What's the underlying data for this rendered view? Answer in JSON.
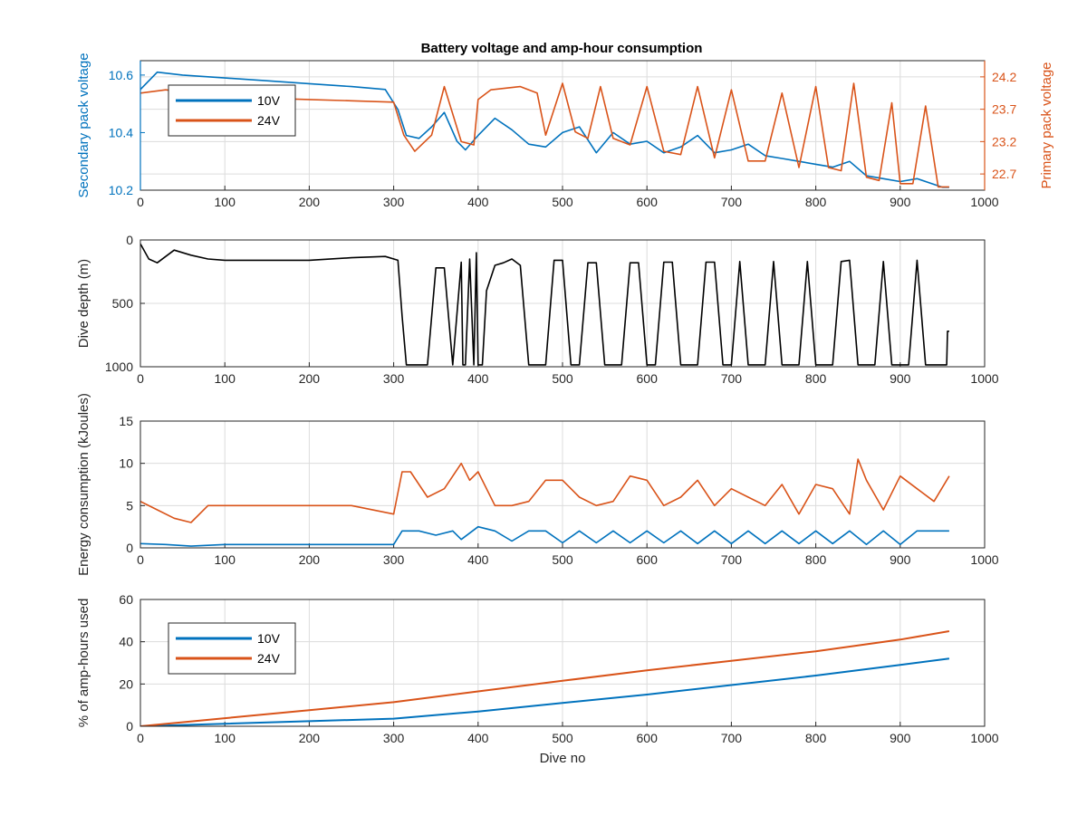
{
  "figure": {
    "title": "Battery voltage and amp-hour consumption",
    "x_axis_label": "Dive no"
  },
  "colors": {
    "series_10v": "#0072bd",
    "series_24v": "#d95319",
    "depth": "#000000",
    "grid": "#dcdcdc"
  },
  "chart_data": [
    {
      "type": "line",
      "ylabel": "Secondary pack voltage",
      "ylabel_right": "Primary pack voltage",
      "xlim": [
        0,
        1000
      ],
      "ylim": [
        10.2,
        10.65
      ],
      "ylim_right": [
        22.45,
        24.45
      ],
      "x_ticks": [
        "0",
        "100",
        "200",
        "300",
        "400",
        "500",
        "600",
        "700",
        "800",
        "900",
        "1000"
      ],
      "y_ticks": [
        "10.2",
        "10.4",
        "10.6"
      ],
      "y_ticks_right": [
        "22.7",
        "23.2",
        "23.7",
        "24.2"
      ],
      "grid": true,
      "legend": "top-left",
      "series": [
        {
          "name": "10V",
          "axis": "left",
          "x": [
            0,
            20,
            50,
            100,
            150,
            200,
            250,
            290,
            305,
            315,
            330,
            345,
            360,
            375,
            385,
            400,
            420,
            440,
            460,
            480,
            500,
            520,
            540,
            560,
            580,
            600,
            620,
            640,
            660,
            680,
            700,
            720,
            740,
            760,
            780,
            800,
            820,
            840,
            860,
            880,
            900,
            920,
            940,
            950,
            958
          ],
          "y": [
            10.55,
            10.61,
            10.6,
            10.59,
            10.58,
            10.57,
            10.56,
            10.55,
            10.48,
            10.39,
            10.38,
            10.42,
            10.47,
            10.37,
            10.34,
            10.39,
            10.45,
            10.41,
            10.36,
            10.35,
            10.4,
            10.42,
            10.33,
            10.4,
            10.36,
            10.37,
            10.33,
            10.35,
            10.39,
            10.33,
            10.34,
            10.36,
            10.32,
            10.31,
            10.3,
            10.29,
            10.28,
            10.3,
            10.25,
            10.24,
            10.23,
            10.24,
            10.22,
            10.21,
            10.21
          ]
        },
        {
          "name": "24V",
          "axis": "right",
          "x": [
            0,
            30,
            60,
            100,
            150,
            200,
            250,
            300,
            312,
            325,
            345,
            360,
            380,
            395,
            400,
            415,
            450,
            470,
            480,
            500,
            515,
            530,
            545,
            560,
            580,
            600,
            620,
            640,
            660,
            680,
            700,
            720,
            740,
            760,
            780,
            800,
            815,
            830,
            845,
            860,
            875,
            890,
            900,
            915,
            930,
            945,
            958
          ],
          "y": [
            23.95,
            24.0,
            23.95,
            23.9,
            23.87,
            23.85,
            23.83,
            23.81,
            23.3,
            23.05,
            23.3,
            24.05,
            23.2,
            23.15,
            23.85,
            24.0,
            24.05,
            23.95,
            23.3,
            24.1,
            23.35,
            23.25,
            24.05,
            23.25,
            23.15,
            24.05,
            23.05,
            23.0,
            24.05,
            22.95,
            24.0,
            22.9,
            22.9,
            23.95,
            22.8,
            24.05,
            22.8,
            22.75,
            24.1,
            22.65,
            22.6,
            23.8,
            22.55,
            22.55,
            23.75,
            22.5,
            22.5
          ]
        }
      ]
    },
    {
      "type": "line",
      "ylabel": "Dive depth (m)",
      "xlim": [
        0,
        1000
      ],
      "ylim": [
        0,
        1000
      ],
      "y_reversed": true,
      "x_ticks": [
        "0",
        "100",
        "200",
        "300",
        "400",
        "500",
        "600",
        "700",
        "800",
        "900",
        "1000"
      ],
      "y_ticks": [
        "0",
        "500",
        "1000"
      ],
      "grid": true,
      "series": [
        {
          "x": [
            0,
            10,
            20,
            40,
            60,
            80,
            100,
            150,
            200,
            250,
            290,
            305,
            310,
            315,
            330,
            340,
            350,
            360,
            370,
            380,
            382,
            385,
            390,
            395,
            398,
            400,
            405,
            410,
            420,
            430,
            440,
            450,
            460,
            470,
            480,
            490,
            500,
            510,
            520,
            530,
            540,
            550,
            560,
            570,
            580,
            590,
            600,
            610,
            620,
            630,
            640,
            650,
            660,
            670,
            680,
            690,
            700,
            710,
            720,
            730,
            740,
            750,
            760,
            770,
            780,
            790,
            800,
            810,
            820,
            830,
            840,
            850,
            860,
            870,
            880,
            890,
            900,
            910,
            920,
            930,
            940,
            950,
            955,
            956,
            958
          ],
          "y": [
            30,
            150,
            180,
            80,
            120,
            150,
            160,
            160,
            160,
            140,
            130,
            160,
            600,
            985,
            985,
            985,
            220,
            220,
            985,
            175,
            985,
            985,
            150,
            985,
            100,
            985,
            985,
            400,
            200,
            180,
            150,
            200,
            985,
            985,
            985,
            160,
            160,
            985,
            985,
            180,
            180,
            985,
            985,
            985,
            180,
            180,
            985,
            985,
            175,
            175,
            985,
            985,
            985,
            175,
            175,
            985,
            985,
            170,
            985,
            985,
            985,
            170,
            985,
            985,
            985,
            170,
            985,
            985,
            985,
            170,
            160,
            985,
            985,
            985,
            170,
            985,
            985,
            985,
            160,
            985,
            985,
            985,
            985,
            720,
            720
          ]
        }
      ]
    },
    {
      "type": "line",
      "ylabel": "Energy consumption (kJoules)",
      "xlim": [
        0,
        1000
      ],
      "ylim": [
        0,
        15
      ],
      "x_ticks": [
        "0",
        "100",
        "200",
        "300",
        "400",
        "500",
        "600",
        "700",
        "800",
        "900",
        "1000"
      ],
      "y_ticks": [
        "0",
        "5",
        "10",
        "15"
      ],
      "grid": true,
      "series": [
        {
          "name": "10V",
          "x": [
            0,
            30,
            60,
            100,
            150,
            200,
            250,
            300,
            310,
            330,
            350,
            370,
            380,
            400,
            420,
            440,
            460,
            480,
            500,
            520,
            540,
            560,
            580,
            600,
            620,
            640,
            660,
            680,
            700,
            720,
            740,
            760,
            780,
            800,
            820,
            840,
            860,
            880,
            900,
            920,
            940,
            958
          ],
          "y": [
            0.5,
            0.4,
            0.2,
            0.4,
            0.4,
            0.4,
            0.4,
            0.4,
            2.0,
            2.0,
            1.5,
            2.0,
            1.0,
            2.5,
            2.0,
            0.8,
            2.0,
            2.0,
            0.6,
            2.0,
            0.6,
            2.0,
            0.6,
            2.0,
            0.6,
            2.0,
            0.5,
            2.0,
            0.5,
            2.0,
            0.5,
            2.0,
            0.5,
            2.0,
            0.5,
            2.0,
            0.4,
            2.0,
            0.4,
            2.0,
            2.0,
            2.0
          ]
        },
        {
          "name": "24V",
          "x": [
            0,
            20,
            40,
            60,
            80,
            100,
            150,
            200,
            250,
            300,
            310,
            320,
            340,
            360,
            380,
            390,
            400,
            420,
            440,
            460,
            480,
            500,
            520,
            540,
            560,
            580,
            600,
            620,
            640,
            660,
            680,
            700,
            720,
            740,
            760,
            780,
            800,
            820,
            840,
            850,
            860,
            880,
            900,
            920,
            940,
            958
          ],
          "y": [
            5.5,
            4.5,
            3.5,
            3.0,
            5.0,
            5.0,
            5.0,
            5.0,
            5.0,
            4.0,
            9.0,
            9.0,
            6.0,
            7.0,
            10.0,
            8.0,
            9.0,
            5.0,
            5.0,
            5.5,
            8.0,
            8.0,
            6.0,
            5.0,
            5.5,
            8.5,
            8.0,
            5.0,
            6.0,
            8.0,
            5.0,
            7.0,
            6.0,
            5.0,
            7.5,
            4.0,
            7.5,
            7.0,
            4.0,
            10.5,
            8.0,
            4.5,
            8.5,
            7.0,
            5.5,
            8.5
          ]
        }
      ]
    },
    {
      "type": "line",
      "ylabel": "% of amp-hours used",
      "xlabel": "Dive no",
      "xlim": [
        0,
        1000
      ],
      "ylim": [
        0,
        60
      ],
      "x_ticks": [
        "0",
        "100",
        "200",
        "300",
        "400",
        "500",
        "600",
        "700",
        "800",
        "900",
        "1000"
      ],
      "y_ticks": [
        "0",
        "20",
        "40",
        "60"
      ],
      "grid": true,
      "legend": "top-left",
      "series": [
        {
          "name": "10V",
          "x": [
            0,
            100,
            200,
            300,
            400,
            500,
            600,
            700,
            800,
            900,
            958
          ],
          "y": [
            0,
            1.2,
            2.4,
            3.6,
            7.0,
            11.0,
            15.0,
            19.5,
            24.0,
            29.0,
            32.0
          ]
        },
        {
          "name": "24V",
          "x": [
            0,
            100,
            200,
            300,
            400,
            500,
            600,
            700,
            800,
            900,
            958
          ],
          "y": [
            0,
            3.8,
            7.6,
            11.4,
            16.5,
            21.5,
            26.5,
            31.0,
            35.5,
            41.0,
            45.0
          ]
        }
      ]
    }
  ]
}
